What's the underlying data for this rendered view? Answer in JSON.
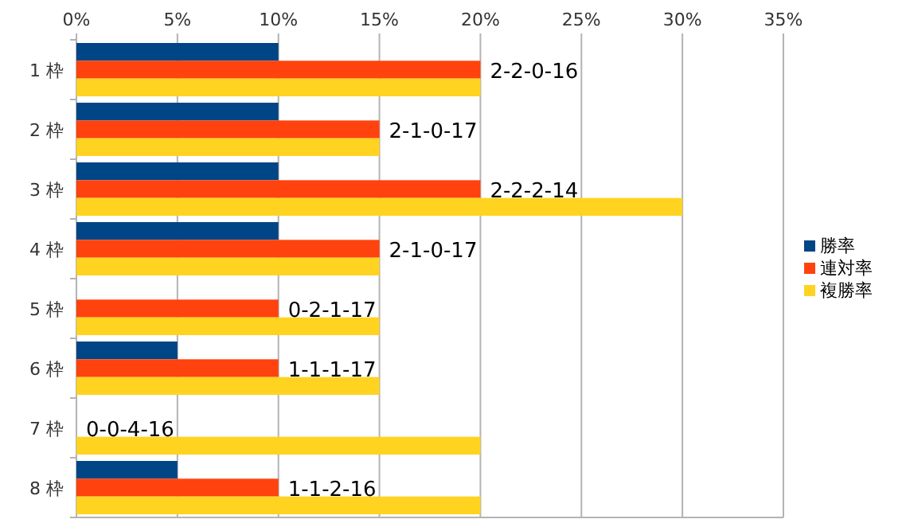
{
  "chart_data": {
    "type": "bar",
    "orientation": "horizontal",
    "categories": [
      "1 枠",
      "2 枠",
      "3 枠",
      "4 枠",
      "5 枠",
      "6 枠",
      "7 枠",
      "8 枠"
    ],
    "series": [
      {
        "name": "勝率",
        "color": "#004586",
        "values": [
          10,
          10,
          10,
          10,
          0,
          5,
          0,
          5
        ]
      },
      {
        "name": "連対率",
        "color": "#ff420e",
        "values": [
          20,
          15,
          20,
          15,
          10,
          10,
          0,
          10
        ]
      },
      {
        "name": "複勝率",
        "color": "#ffd320",
        "values": [
          20,
          15,
          30,
          15,
          15,
          15,
          20,
          20
        ]
      }
    ],
    "xlim": [
      0,
      35
    ],
    "xticks": [
      {
        "value": 0,
        "label": "0%"
      },
      {
        "value": 5,
        "label": "5%"
      },
      {
        "value": 10,
        "label": "10%"
      },
      {
        "value": 15,
        "label": "15%"
      },
      {
        "value": 20,
        "label": "20%"
      },
      {
        "value": 25,
        "label": "25%"
      },
      {
        "value": 30,
        "label": "30%"
      },
      {
        "value": 35,
        "label": "35%"
      }
    ],
    "annotations": [
      {
        "text": "2-2-0-16",
        "x": 20,
        "y": "1 枠"
      },
      {
        "text": "2-1-0-17",
        "x": 15,
        "y": "2 枠"
      },
      {
        "text": "2-2-2-14",
        "x": 20,
        "y": "3 枠"
      },
      {
        "text": "2-1-0-17",
        "x": 15,
        "y": "4 枠"
      },
      {
        "text": "0-2-1-17",
        "x": 10,
        "y": "5 枠"
      },
      {
        "text": "1-1-1-17",
        "x": 10,
        "y": "6 枠"
      },
      {
        "text": "0-0-4-16",
        "x": 0,
        "y": "7 枠"
      },
      {
        "text": "1-1-2-16",
        "x": 10,
        "y": "8 枠"
      }
    ],
    "grid": "x",
    "legend": "right"
  }
}
